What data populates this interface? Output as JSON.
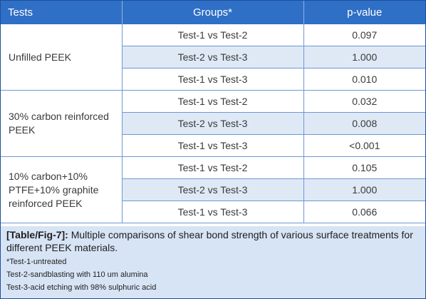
{
  "table": {
    "headers": [
      "Tests",
      "Groups*",
      "p-value"
    ],
    "groups": [
      {
        "test": "Unfilled PEEK",
        "rows": [
          {
            "group": "Test-1 vs Test-2",
            "p": "0.097"
          },
          {
            "group": "Test-2 vs Test-3",
            "p": "1.000"
          },
          {
            "group": "Test-1 vs Test-3",
            "p": "0.010"
          }
        ]
      },
      {
        "test": "30% carbon reinforced PEEK",
        "rows": [
          {
            "group": "Test-1 vs Test-2",
            "p": "0.032"
          },
          {
            "group": "Test-2 vs Test-3",
            "p": "0.008"
          },
          {
            "group": "Test-1 vs Test-3",
            "p": "<0.001"
          }
        ]
      },
      {
        "test": "10% carbon+10% PTFE+10% graphite reinforced PEEK",
        "rows": [
          {
            "group": "Test-1 vs Test-2",
            "p": "0.105"
          },
          {
            "group": "Test-2 vs Test-3",
            "p": "1.000"
          },
          {
            "group": "Test-1 vs Test-3",
            "p": "0.066"
          }
        ]
      }
    ]
  },
  "caption": {
    "label": "[Table/Fig-7]:",
    "text": " Multiple comparisons of shear bond strength of various surface treatments for different PEEK materials.",
    "notes": [
      "*Test-1-untreated",
      "Test-2-sandblasting with 110 um alumina",
      "Test-3-acid etching with 98% sulphuric acid"
    ]
  },
  "colors": {
    "header_bg": "#2f6fc6",
    "stripe_bg": "#dfe9f6",
    "caption_bg": "#d7e4f5",
    "border": "#6f97d2"
  }
}
